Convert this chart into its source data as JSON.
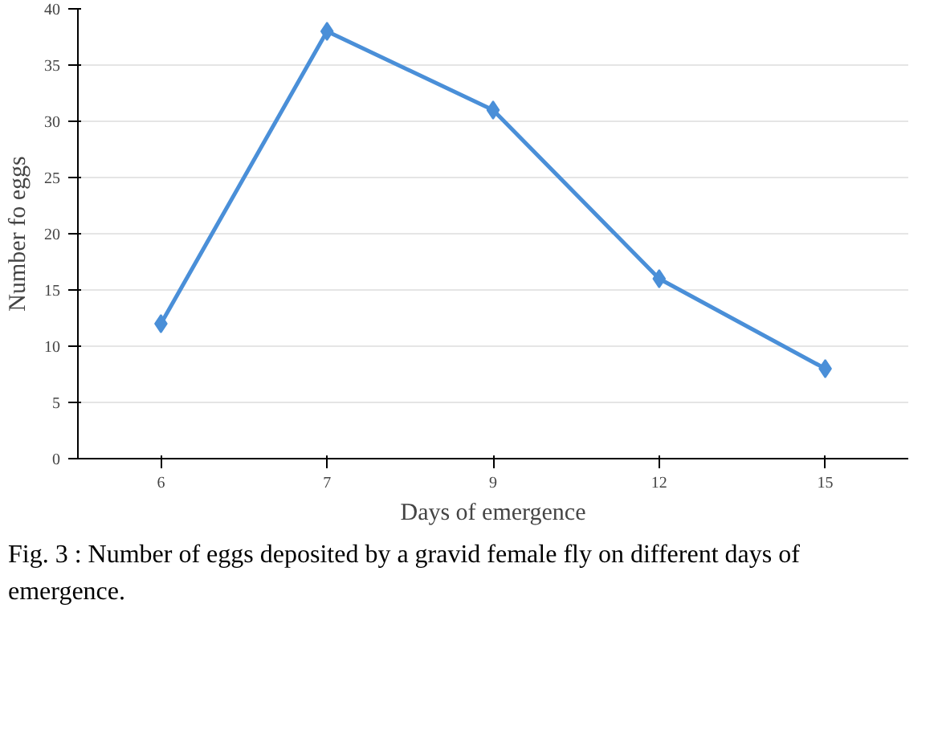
{
  "chart_data": {
    "type": "line",
    "xlabel": "Days of emergence",
    "ylabel": "Number fo eggs",
    "categories": [
      "6",
      "7",
      "9",
      "12",
      "15"
    ],
    "series": [
      {
        "color": "#4a8fd8",
        "values": [
          12,
          38,
          31,
          16,
          8
        ]
      }
    ],
    "ylim": [
      0,
      40
    ],
    "yticks": [
      0,
      5,
      10,
      15,
      20,
      25,
      30,
      35,
      40
    ],
    "grid": "y",
    "marker": "diamond",
    "line_style": "solid",
    "annotations": [
      "Fig. 3 : Number of eggs deposited by a gravid female fly on different days of emergence."
    ]
  }
}
